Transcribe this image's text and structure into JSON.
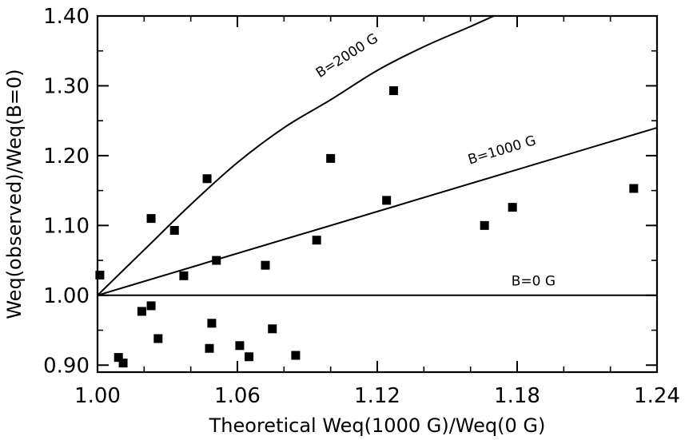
{
  "chart_data": {
    "type": "scatter",
    "xlabel": "Theoretical Weq(1000 G)/Weq(0 G)",
    "ylabel": "Weq(observed)/Weq(B=0)",
    "xlim": [
      1.0,
      1.24
    ],
    "ylim": [
      0.89,
      1.4
    ],
    "xticks": [
      "1.00",
      "1.06",
      "1.12",
      "1.18",
      "1.24"
    ],
    "yticks": [
      "0.90",
      "1.00",
      "1.10",
      "1.20",
      "1.30",
      "1.40"
    ],
    "xtick_values": [
      1.0,
      1.06,
      1.12,
      1.18,
      1.24
    ],
    "ytick_values": [
      0.9,
      1.0,
      1.1,
      1.2,
      1.3,
      1.4
    ],
    "grid": false,
    "points": [
      {
        "x": 1.001,
        "y": 1.029
      },
      {
        "x": 1.009,
        "y": 0.911
      },
      {
        "x": 1.011,
        "y": 0.903
      },
      {
        "x": 1.019,
        "y": 0.977
      },
      {
        "x": 1.023,
        "y": 1.11
      },
      {
        "x": 1.023,
        "y": 0.985
      },
      {
        "x": 1.026,
        "y": 0.938
      },
      {
        "x": 1.033,
        "y": 1.093
      },
      {
        "x": 1.037,
        "y": 1.028
      },
      {
        "x": 1.047,
        "y": 1.167
      },
      {
        "x": 1.048,
        "y": 0.924
      },
      {
        "x": 1.049,
        "y": 0.96
      },
      {
        "x": 1.051,
        "y": 1.05
      },
      {
        "x": 1.061,
        "y": 0.928
      },
      {
        "x": 1.065,
        "y": 0.912
      },
      {
        "x": 1.072,
        "y": 1.043
      },
      {
        "x": 1.075,
        "y": 0.952
      },
      {
        "x": 1.085,
        "y": 0.914
      },
      {
        "x": 1.094,
        "y": 1.079
      },
      {
        "x": 1.1,
        "y": 1.196
      },
      {
        "x": 1.124,
        "y": 1.136
      },
      {
        "x": 1.127,
        "y": 1.293
      },
      {
        "x": 1.166,
        "y": 1.1
      },
      {
        "x": 1.178,
        "y": 1.126
      },
      {
        "x": 1.23,
        "y": 1.153
      }
    ],
    "curves": [
      {
        "label": "B=2000 G",
        "points": [
          [
            1.0,
            1.0
          ],
          [
            1.02,
            1.065
          ],
          [
            1.04,
            1.13
          ],
          [
            1.06,
            1.19
          ],
          [
            1.08,
            1.24
          ],
          [
            1.1,
            1.28
          ],
          [
            1.12,
            1.322
          ],
          [
            1.14,
            1.356
          ],
          [
            1.16,
            1.385
          ],
          [
            1.17,
            1.4
          ]
        ],
        "label_at": [
          1.108,
          1.338
        ]
      },
      {
        "label": "B=1000 G",
        "points": [
          [
            1.0,
            1.0
          ],
          [
            1.24,
            1.24
          ]
        ],
        "label_at": [
          1.174,
          1.202
        ]
      },
      {
        "label": "B=0 G",
        "points": [
          [
            1.0,
            1.0
          ],
          [
            1.24,
            1.0
          ]
        ],
        "label_at": [
          1.187,
          1.014
        ]
      }
    ]
  }
}
